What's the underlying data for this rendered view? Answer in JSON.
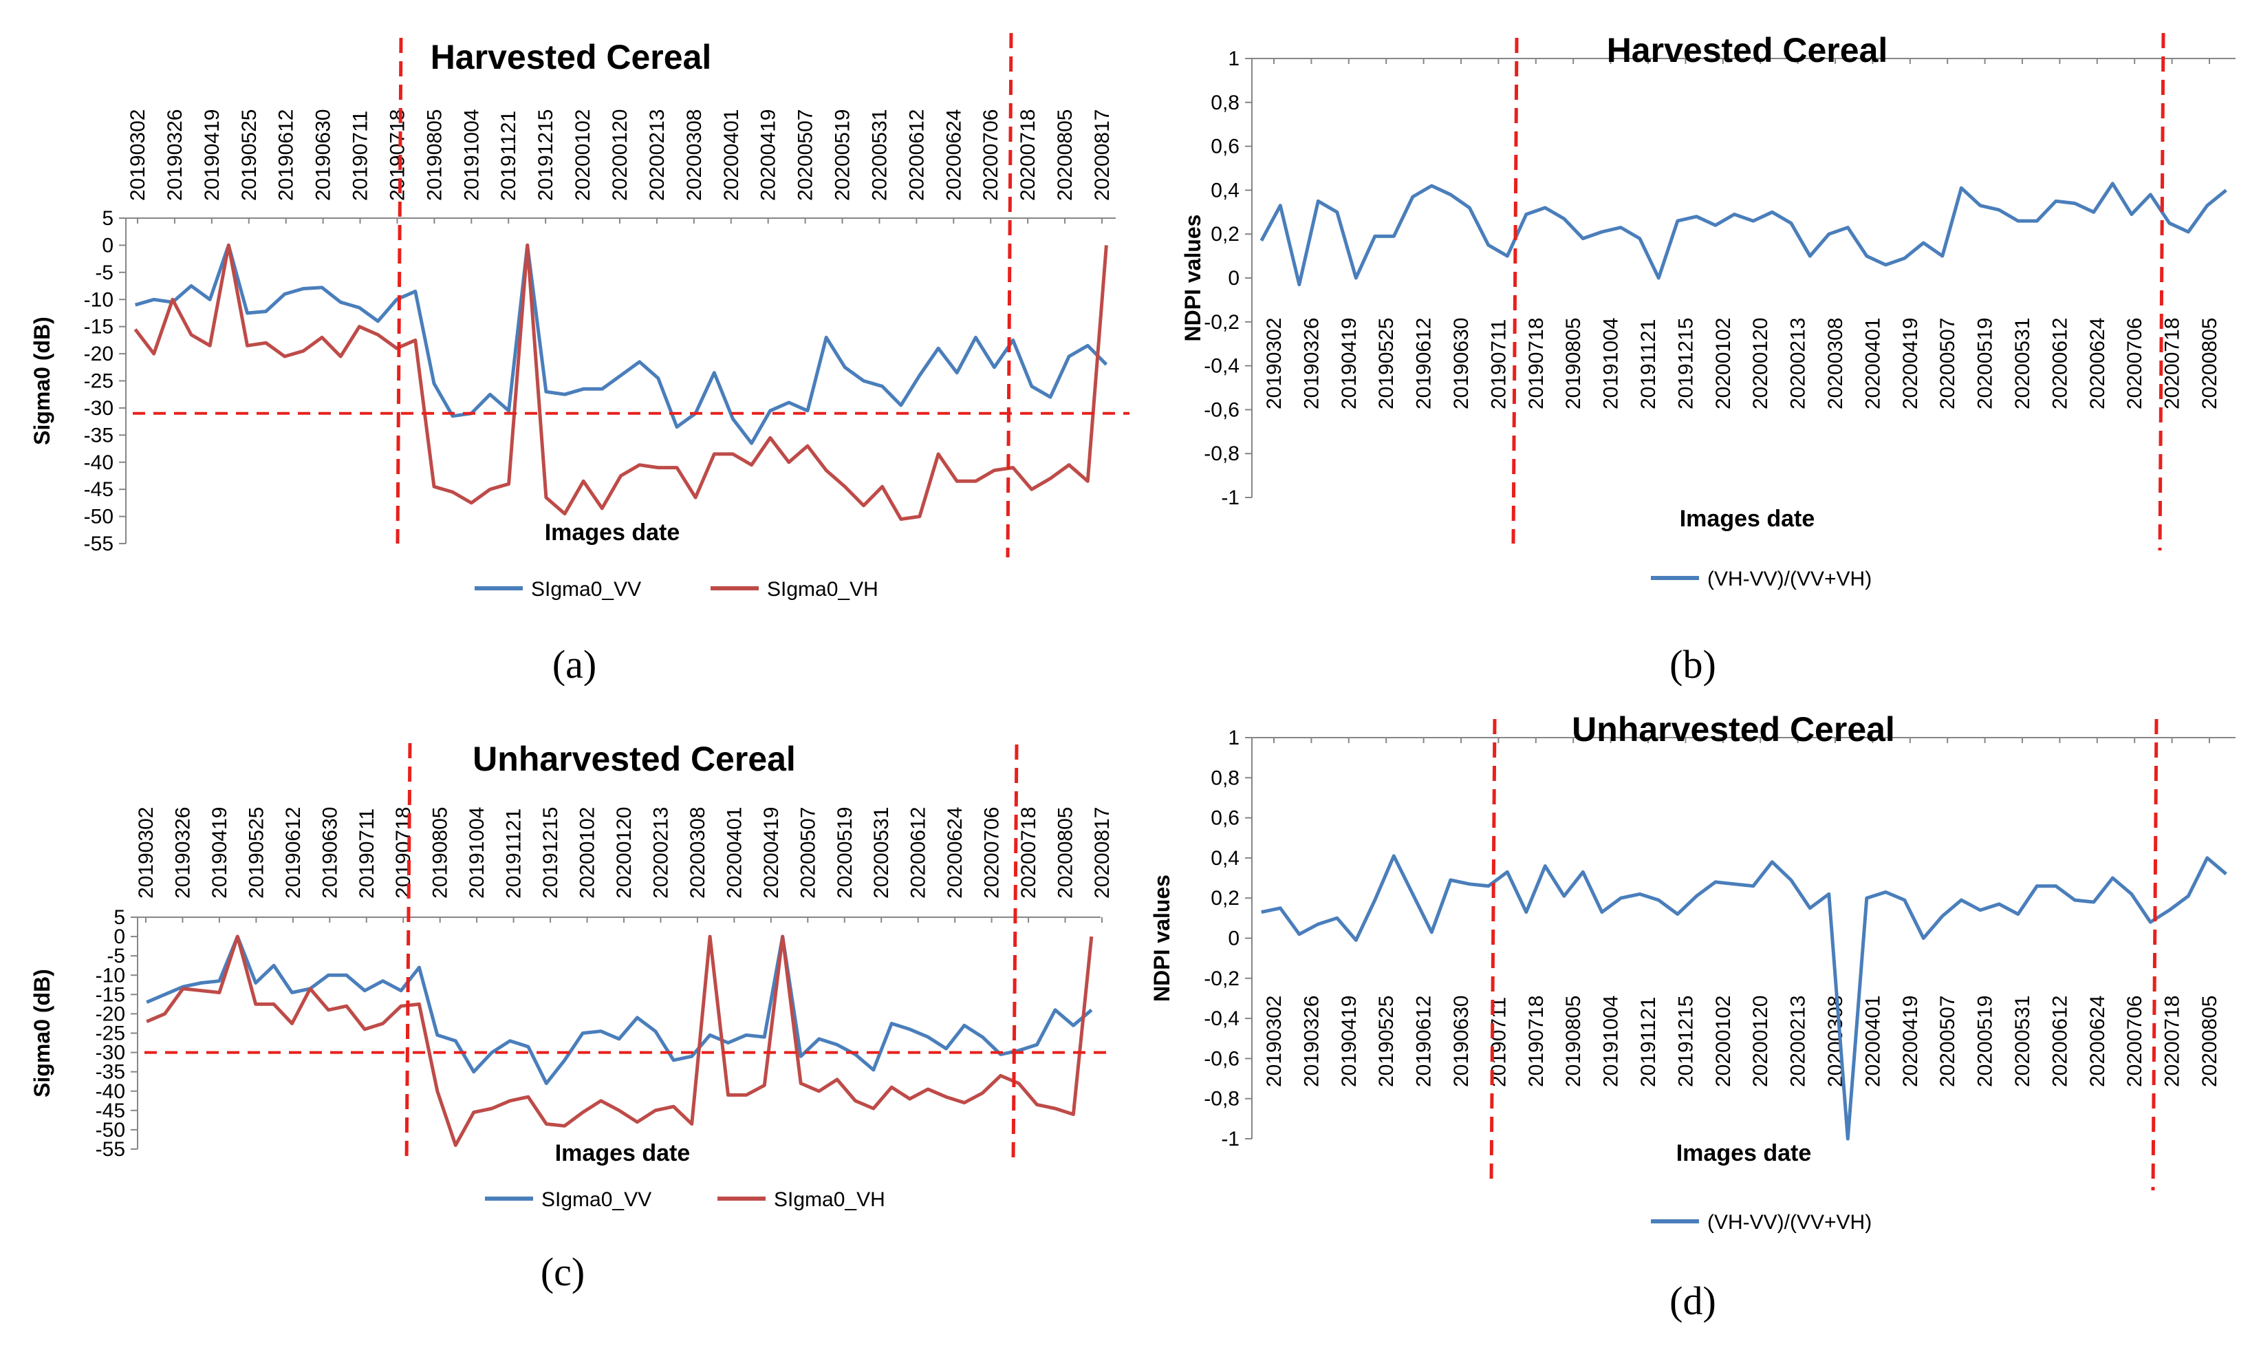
{
  "panels": [
    {
      "id": "a",
      "type": "line",
      "caption": "(a)",
      "title": "Harvested Cereal",
      "ylabel": "Sigma0 (dB)",
      "xlabel": "Images date",
      "ylim": [
        -55,
        5
      ],
      "yticks": [
        "5",
        "0",
        "-5",
        "-10",
        "-15",
        "-20",
        "-25",
        "-30",
        "-35",
        "-40",
        "-45",
        "-50",
        "-55"
      ],
      "tick_labels": [
        "20190302",
        "20190326",
        "20190419",
        "20190525",
        "20190612",
        "20190630",
        "20190711",
        "20190718",
        "20190805",
        "20191004",
        "20191121",
        "20191215",
        "20200102",
        "20200120",
        "20200213",
        "20200308",
        "20200401",
        "20200419",
        "20200507",
        "20200519",
        "20200531",
        "20200612",
        "20200624",
        "20200706",
        "20200718",
        "20200805",
        "20200817"
      ],
      "legend": [
        "SIgma0_VV",
        "SIgma0_VH"
      ],
      "colors": [
        "#4a7ebb",
        "#be4b48"
      ],
      "series": [
        {
          "name": "SIgma0_VV",
          "values": [
            -11,
            -10,
            -10.5,
            -7.5,
            -10,
            0,
            -12.5,
            -12.2,
            -9,
            -8,
            -7.8,
            -10.5,
            -11.5,
            -14,
            -10,
            -8.5,
            -25.5,
            -31.5,
            -31,
            -27.5,
            -30.5,
            0,
            -27,
            -27.5,
            -26.5,
            -26.5,
            -24,
            -21.5,
            -24.5,
            -33.5,
            -31,
            -23.5,
            -32,
            -36.5,
            -30.5,
            -29,
            -30.5,
            -17,
            -22.5,
            -25,
            -26,
            -29.5,
            -24,
            -19,
            -23.5,
            -17,
            -22.5,
            -17.5,
            -26,
            -28,
            -20.5,
            -18.5,
            -22
          ]
        },
        {
          "name": "SIgma0_VH",
          "values": [
            -15.5,
            -20,
            -10,
            -16.5,
            -18.5,
            0,
            -18.5,
            -18,
            -20.5,
            -19.5,
            -17,
            -20.5,
            -15,
            -16.5,
            -19,
            -17.5,
            -44.5,
            -45.5,
            -47.5,
            -45,
            -44,
            0,
            -46.5,
            -49.5,
            -43.5,
            -48.5,
            -42.5,
            -40.5,
            -41,
            -41,
            -46.5,
            -38.5,
            -38.5,
            -40.5,
            -35.5,
            -40,
            -37,
            -41.5,
            -44.5,
            -48,
            -44.5,
            -50.5,
            -50,
            -38.5,
            -43.5,
            -43.5,
            -41.5,
            -41,
            -45,
            -43,
            -40.5,
            -43.5,
            0
          ]
        }
      ],
      "threshold": -31
    },
    {
      "id": "b",
      "type": "line",
      "caption": "(b)",
      "title": "Harvested Cereal",
      "ylabel": "NDPI values",
      "xlabel": "Images date",
      "ylim": [
        -1,
        1
      ],
      "yticks": [
        "1",
        "0,8",
        "0,6",
        "0,4",
        "0,2",
        "0",
        "-0,2",
        "-0,4",
        "-0,6",
        "-0,8",
        "-1"
      ],
      "tick_labels": [
        "20190302",
        "20190326",
        "20190419",
        "20190525",
        "20190612",
        "20190630",
        "20190711",
        "20190718",
        "20190805",
        "20191004",
        "20191121",
        "20191215",
        "20200102",
        "20200120",
        "20200213",
        "20200308",
        "20200401",
        "20200419",
        "20200507",
        "20200519",
        "20200531",
        "20200612",
        "20200624",
        "20200706",
        "20200718",
        "20200805"
      ],
      "legend": [
        "(VH-VV)/(VV+VH)"
      ],
      "colors": [
        "#4a7ebb"
      ],
      "series": [
        {
          "name": "(VH-VV)/(VV+VH)",
          "values": [
            0.17,
            0.33,
            -0.03,
            0.35,
            0.3,
            0,
            0.19,
            0.19,
            0.37,
            0.42,
            0.38,
            0.32,
            0.15,
            0.1,
            0.29,
            0.32,
            0.27,
            0.18,
            0.21,
            0.23,
            0.18,
            0,
            0.26,
            0.28,
            0.24,
            0.29,
            0.26,
            0.3,
            0.25,
            0.1,
            0.2,
            0.23,
            0.1,
            0.06,
            0.09,
            0.16,
            0.1,
            0.41,
            0.33,
            0.31,
            0.26,
            0.26,
            0.35,
            0.34,
            0.3,
            0.43,
            0.29,
            0.38,
            0.25,
            0.21,
            0.33,
            0.4
          ]
        }
      ]
    },
    {
      "id": "c",
      "type": "line",
      "caption": "(c)",
      "title": "Unharvested Cereal",
      "ylabel": "Sigma0 (dB)",
      "xlabel": "Images date",
      "ylim": [
        -55,
        5
      ],
      "yticks": [
        "5",
        "0",
        "-5",
        "-10",
        "-15",
        "-20",
        "-25",
        "-30",
        "-35",
        "-40",
        "-45",
        "-50",
        "-55"
      ],
      "tick_labels": [
        "20190302",
        "20190326",
        "20190419",
        "20190525",
        "20190612",
        "20190630",
        "20190711",
        "20190718",
        "20190805",
        "20191004",
        "20191121",
        "20191215",
        "20200102",
        "20200120",
        "20200213",
        "20200308",
        "20200401",
        "20200419",
        "20200507",
        "20200519",
        "20200531",
        "20200612",
        "20200624",
        "20200706",
        "20200718",
        "20200805",
        "20200817"
      ],
      "legend": [
        "SIgma0_VV",
        "SIgma0_VH"
      ],
      "colors": [
        "#4a7ebb",
        "#be4b48"
      ],
      "series": [
        {
          "name": "SIgma0_VV",
          "values": [
            -17,
            -15,
            -13,
            -12,
            -11.5,
            0,
            -12,
            -7.5,
            -14.5,
            -13.5,
            -10,
            -10,
            -14,
            -11.5,
            -14,
            -8,
            -25.5,
            -27,
            -35,
            -30,
            -27,
            -28.5,
            -38,
            -32,
            -25,
            -24.5,
            -26.5,
            -21,
            -24.5,
            -32,
            -31,
            -25.5,
            -27.5,
            -25.5,
            -26,
            0,
            -31,
            -26.5,
            -28,
            -30.5,
            -34.5,
            -22.5,
            -24,
            -26,
            -29,
            -23,
            -26,
            -30.5,
            -29.5,
            -28,
            -19,
            -23,
            -19
          ]
        },
        {
          "name": "SIgma0_VH",
          "values": [
            -22,
            -20,
            -13.5,
            -14,
            -14.5,
            0,
            -17.5,
            -17.5,
            -22.5,
            -13.5,
            -19,
            -18,
            -24,
            -22.5,
            -18,
            -17.5,
            -40,
            -54,
            -45.5,
            -44.5,
            -42.5,
            -41.5,
            -48.5,
            -49,
            -45.5,
            -42.5,
            -45,
            -48,
            -45,
            -44,
            -48.5,
            0,
            -41,
            -41,
            -38.5,
            0,
            -38,
            -40,
            -37,
            -42.5,
            -44.5,
            -39,
            -42,
            -39.5,
            -41.5,
            -43,
            -40.5,
            -36,
            -38,
            -43.5,
            -44.5,
            -46,
            0
          ]
        }
      ],
      "threshold": -30
    },
    {
      "id": "d",
      "type": "line",
      "caption": "(d)",
      "title": "Unharvested Cereal",
      "ylabel": "NDPI values",
      "xlabel": "Images date",
      "ylim": [
        -1,
        1
      ],
      "yticks": [
        "1",
        "0,8",
        "0,6",
        "0,4",
        "0,2",
        "0",
        "-0,2",
        "-0,4",
        "-0,6",
        "-0,8",
        "-1"
      ],
      "tick_labels": [
        "20190302",
        "20190326",
        "20190419",
        "20190525",
        "20190612",
        "20190630",
        "20190711",
        "20190718",
        "20190805",
        "20191004",
        "20191121",
        "20191215",
        "20200102",
        "20200120",
        "20200213",
        "20200308",
        "20200401",
        "20200419",
        "20200507",
        "20200519",
        "20200531",
        "20200612",
        "20200624",
        "20200706",
        "20200718",
        "20200805"
      ],
      "legend": [
        "(VH-VV)/(VV+VH)"
      ],
      "colors": [
        "#4a7ebb"
      ],
      "series": [
        {
          "name": "(VH-VV)/(VV+VH)",
          "values": [
            0.13,
            0.15,
            0.02,
            0.07,
            0.1,
            -0.01,
            0.19,
            0.41,
            0.22,
            0.03,
            0.29,
            0.27,
            0.26,
            0.33,
            0.13,
            0.36,
            0.21,
            0.33,
            0.13,
            0.2,
            0.22,
            0.19,
            0.12,
            0.21,
            0.28,
            0.27,
            0.26,
            0.38,
            0.29,
            0.15,
            0.22,
            -1,
            0.2,
            0.23,
            0.19,
            0,
            0.11,
            0.19,
            0.14,
            0.17,
            0.12,
            0.26,
            0.26,
            0.19,
            0.18,
            0.3,
            0.22,
            0.08,
            0.14,
            0.21,
            0.4,
            0.32
          ]
        }
      ]
    }
  ]
}
